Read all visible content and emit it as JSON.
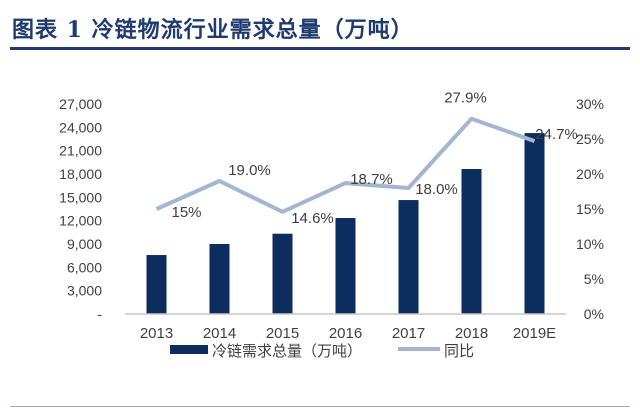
{
  "title": "图表 1   冷链物流行业需求总量（万吨）",
  "chart_data": {
    "type": "bar+line",
    "title": "",
    "categories": [
      "2013",
      "2014",
      "2015",
      "2016",
      "2017",
      "2018",
      "2019E"
    ],
    "series": [
      {
        "name": "冷链需求总量（万吨）",
        "type": "bar",
        "axis": "left",
        "color": "#0c2d5e",
        "values": [
          7580,
          9000,
          10320,
          12340,
          14650,
          18640,
          23260
        ]
      },
      {
        "name": "同比",
        "type": "line",
        "axis": "right",
        "color": "#a2b6d2",
        "values": [
          15.0,
          19.0,
          14.6,
          18.7,
          18.0,
          27.9,
          24.7
        ],
        "data_labels": [
          "15%",
          "19.0%",
          "14.6%",
          "18.7%",
          "18.0%",
          "27.9%",
          "24.7%"
        ]
      }
    ],
    "left_axis": {
      "ylim": [
        0,
        27000
      ],
      "ticks": [
        "-",
        "3,000",
        "6,000",
        "9,000",
        "12,000",
        "15,000",
        "18,000",
        "21,000",
        "24,000",
        "27,000"
      ]
    },
    "right_axis": {
      "ylim": [
        0,
        30
      ],
      "ticks": [
        "0%",
        "5%",
        "10%",
        "15%",
        "20%",
        "25%",
        "30%"
      ]
    },
    "grid": false,
    "legend": "bottom"
  }
}
